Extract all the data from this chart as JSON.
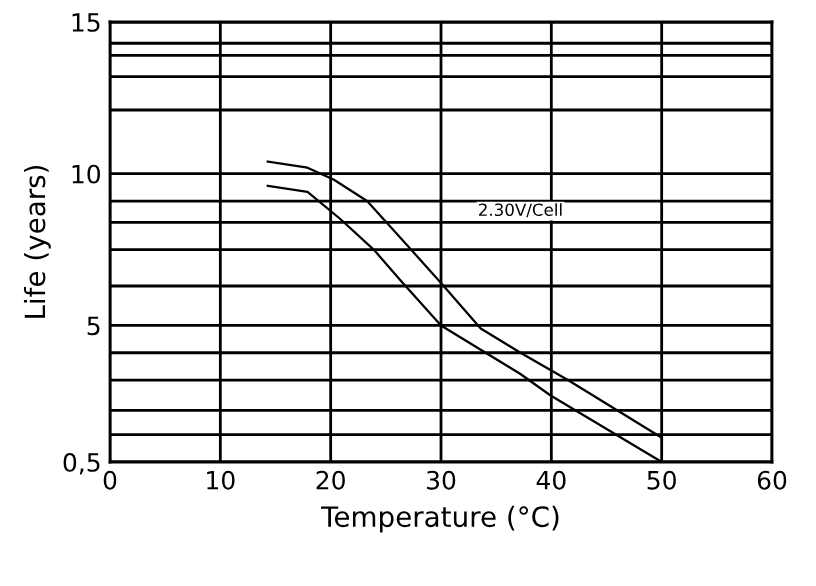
{
  "chart_data": {
    "type": "line",
    "xlabel": "Temperature (°C)",
    "ylabel": "Life (years)",
    "series": [
      {
        "color": "#000000",
        "x": [
          14.3,
          17.9,
          20.3,
          23.3,
          26.3,
          30.0,
          33.6,
          37.2,
          41.5,
          50
        ],
        "values": [
          10.4,
          10.2,
          9.8,
          9.1,
          7.9,
          6.4,
          4.9,
          4.1,
          3.2,
          1.3
        ]
      },
      {
        "color": "#000000",
        "x": [
          14.3,
          17.9,
          20.9,
          23.9,
          26.3,
          30.0,
          33.6,
          37.2,
          39.9,
          50
        ],
        "values": [
          9.6,
          9.4,
          8.5,
          7.5,
          6.5,
          5.0,
          4.2,
          3.4,
          2.7,
          0.5
        ]
      }
    ],
    "xlim": [
      0,
      60
    ],
    "xticks": [
      0,
      10,
      20,
      30,
      40,
      50,
      60
    ],
    "ylim": [
      0.5,
      15
    ],
    "yticks": [
      {
        "value": 0.5,
        "label": "0,5"
      },
      {
        "value": 1.4,
        "label": null
      },
      {
        "value": 2.2,
        "label": null
      },
      {
        "value": 3.2,
        "label": null
      },
      {
        "value": 4.1,
        "label": null
      },
      5,
      {
        "value": 6.3,
        "label": null
      },
      {
        "value": 7.5,
        "label": null
      },
      {
        "value": 8.4,
        "label": null
      },
      {
        "value": 9.1,
        "label": null
      },
      10,
      {
        "value": 12.1,
        "label": null
      },
      {
        "value": 13.2,
        "label": null
      },
      {
        "value": 13.9,
        "label": null
      },
      {
        "value": 14.3,
        "label": null
      },
      15
    ],
    "grid": true,
    "marker": "none",
    "line_style": "solid",
    "annotations": [
      "2.30V/Cell"
    ]
  }
}
